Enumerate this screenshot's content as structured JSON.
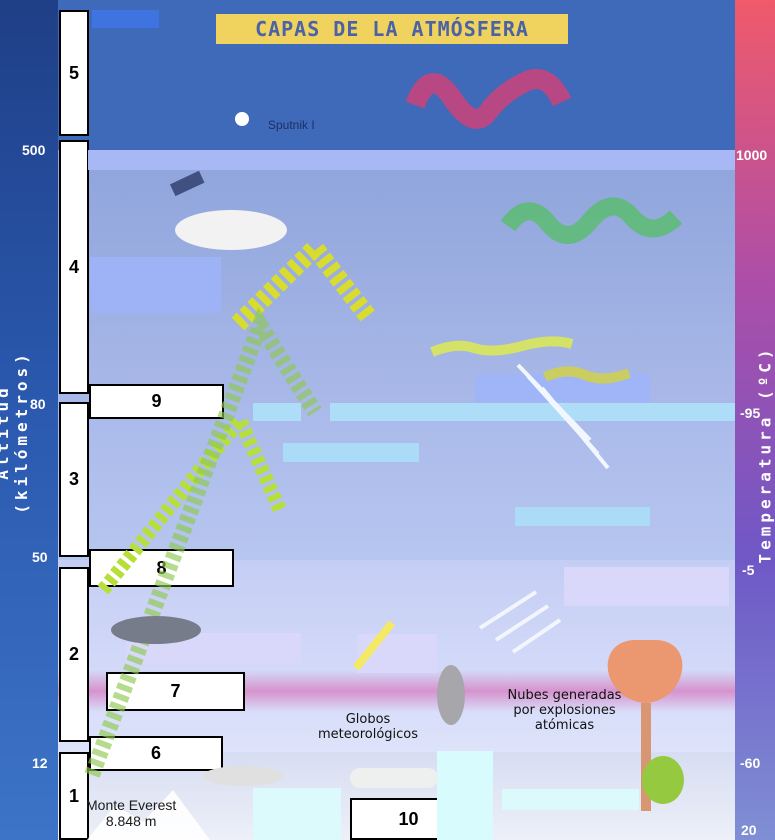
{
  "title": "CAPAS DE LA ATMÓSFERA",
  "axis_left": "Altitud (kilómetros)",
  "axis_right": "Temperatura (ºC)",
  "altitude_ticks": [
    "500",
    "80",
    "50",
    "12"
  ],
  "temperature_ticks": [
    "1000",
    "-95",
    "-5",
    "-60",
    "20"
  ],
  "numbered_labels": [
    "1",
    "2",
    "3",
    "4",
    "5",
    "6",
    "7",
    "8",
    "9",
    "10"
  ],
  "labels": {
    "sputnik": "Sputnik I",
    "globos": "Globos\nmeteorológicos",
    "nubes": "Nubes generadas\npor explosiones\natómicas",
    "everest": "Monte Everest\n8.848 m"
  },
  "colors": {
    "left_bar": "#2b5ab0",
    "right_bar_top": "#f05a6a",
    "right_bar_bottom": "#7f8fd4",
    "title_bg": "#f0d35e"
  }
}
